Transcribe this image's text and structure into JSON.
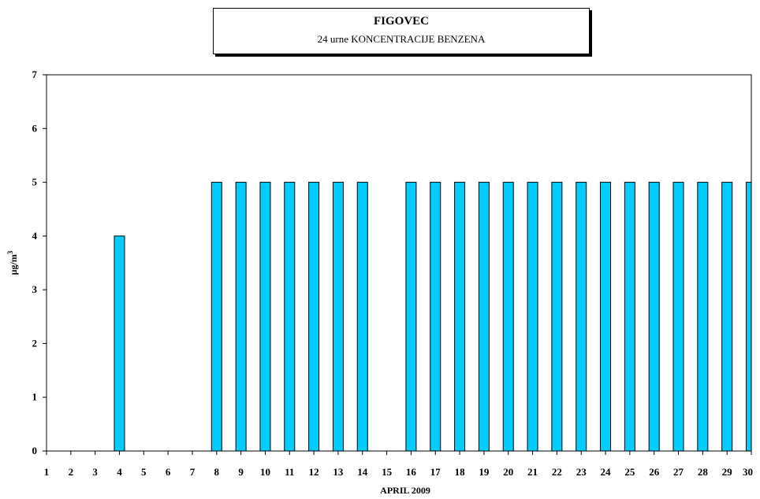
{
  "chart_data": {
    "type": "bar",
    "title": "FIGOVEC",
    "subtitle": "24 urne KONCENTRACIJE BENZENA",
    "xlabel": "APRIL 2009",
    "ylabel": "µg/m",
    "ylabel_superscript": "3",
    "ylim": [
      0,
      7
    ],
    "yticks": [
      0,
      1,
      2,
      3,
      4,
      5,
      6,
      7
    ],
    "grid": false,
    "bar_color": "#00CCFF",
    "categories": [
      "1",
      "2",
      "3",
      "4",
      "5",
      "6",
      "7",
      "8",
      "9",
      "10",
      "11",
      "12",
      "13",
      "14",
      "15",
      "16",
      "17",
      "18",
      "19",
      "20",
      "21",
      "22",
      "23",
      "24",
      "25",
      "26",
      "27",
      "28",
      "29",
      "30"
    ],
    "values": [
      null,
      null,
      null,
      4,
      null,
      null,
      null,
      5,
      5,
      5,
      5,
      5,
      5,
      5,
      null,
      5,
      5,
      5,
      5,
      5,
      5,
      5,
      5,
      5,
      5,
      5,
      5,
      5,
      5,
      5
    ]
  }
}
